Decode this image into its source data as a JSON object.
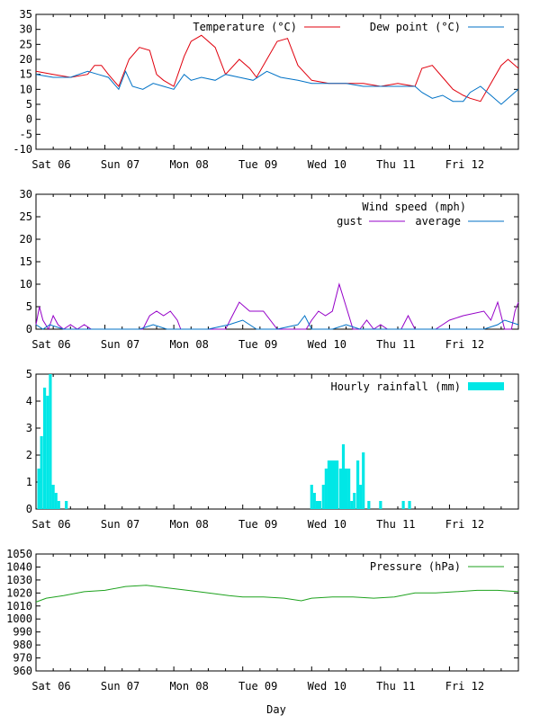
{
  "x_axis_label": "Day",
  "day_labels": [
    "Sat 06",
    "Sun 07",
    "Mon 08",
    "Tue 09",
    "Wed 10",
    "Thu 11",
    "Fri 12"
  ],
  "colors": {
    "temperature": "#e0000d",
    "dew_point": "#0072c6",
    "gust": "#9500c8",
    "average": "#0072c6",
    "rainfall": "#00e7e6",
    "pressure": "#1ea21e"
  },
  "chart_data": [
    {
      "type": "line",
      "x_unit": "days",
      "xlim": [
        0,
        7
      ],
      "ylim": [
        -10,
        35
      ],
      "yticks": [
        "-10",
        "-5",
        "0",
        "5",
        "10",
        "15",
        "20",
        "25",
        "30",
        "35"
      ],
      "grid": false,
      "legend_position": "top-right",
      "series": [
        {
          "name": "Temperature (°C)",
          "x": [
            0,
            0.25,
            0.5,
            0.75,
            0.85,
            0.95,
            1.05,
            1.2,
            1.35,
            1.5,
            1.65,
            1.75,
            1.85,
            2.0,
            2.15,
            2.25,
            2.4,
            2.6,
            2.75,
            2.95,
            3.1,
            3.2,
            3.35,
            3.5,
            3.65,
            3.8,
            4.0,
            4.25,
            4.5,
            4.75,
            5.0,
            5.25,
            5.5,
            5.6,
            5.75,
            5.9,
            6.05,
            6.2,
            6.3,
            6.45,
            6.6,
            6.75,
            6.85,
            7.0
          ],
          "y": [
            16,
            15,
            14,
            15,
            18,
            18,
            15,
            11,
            20,
            24,
            23,
            15,
            13,
            11,
            21,
            26,
            28,
            24,
            15,
            20,
            17,
            14,
            20,
            26,
            27,
            18,
            13,
            12,
            12,
            12,
            11,
            12,
            11,
            17,
            18,
            14,
            10,
            8,
            7,
            6,
            12,
            18,
            20,
            17
          ]
        },
        {
          "name": "Dew point (°C)",
          "x": [
            0,
            0.25,
            0.5,
            0.75,
            0.9,
            1.05,
            1.2,
            1.3,
            1.4,
            1.55,
            1.7,
            1.85,
            2.0,
            2.15,
            2.25,
            2.4,
            2.6,
            2.75,
            2.95,
            3.15,
            3.35,
            3.55,
            3.8,
            4.0,
            4.25,
            4.5,
            4.75,
            5.0,
            5.25,
            5.5,
            5.6,
            5.75,
            5.9,
            6.05,
            6.2,
            6.3,
            6.45,
            6.6,
            6.75,
            6.9,
            7.0
          ],
          "y": [
            15,
            14,
            14,
            16,
            15,
            14,
            10,
            16,
            11,
            10,
            12,
            11,
            10,
            15,
            13,
            14,
            13,
            15,
            14,
            13,
            16,
            14,
            13,
            12,
            12,
            12,
            11,
            11,
            11,
            11,
            9,
            7,
            8,
            6,
            6,
            9,
            11,
            8,
            5,
            8,
            10
          ]
        }
      ]
    },
    {
      "type": "line",
      "xlim": [
        0,
        7
      ],
      "ylim": [
        0,
        30
      ],
      "yticks": [
        "0",
        "5",
        "10",
        "15",
        "20",
        "25",
        "30"
      ],
      "grid": false,
      "legend_title": "Wind speed (mph)",
      "legend_position": "top-right",
      "series": [
        {
          "name": "gust",
          "x": [
            0,
            0.05,
            0.1,
            0.18,
            0.25,
            0.32,
            0.4,
            0.5,
            0.6,
            0.7,
            0.8,
            0.9,
            1.0,
            1.2,
            1.55,
            1.65,
            1.75,
            1.85,
            1.95,
            2.05,
            2.1,
            2.3,
            2.45,
            2.55,
            2.65,
            2.75,
            2.85,
            2.95,
            3.1,
            3.3,
            3.5,
            3.6,
            3.7,
            3.8,
            3.87,
            3.92,
            4.0,
            4.1,
            4.2,
            4.3,
            4.4,
            4.5,
            4.6,
            4.7,
            4.8,
            4.9,
            5.0,
            5.1,
            5.3,
            5.4,
            5.5,
            5.6,
            5.7,
            5.8,
            5.9,
            6.0,
            6.2,
            6.5,
            6.6,
            6.7,
            6.8,
            6.9,
            6.95,
            7.0
          ],
          "y": [
            1,
            5,
            2,
            0,
            3,
            1,
            0,
            1,
            0,
            1,
            0,
            0,
            0,
            0,
            0,
            3,
            4,
            3,
            4,
            2,
            0,
            0,
            0,
            0,
            0,
            0,
            3,
            6,
            4,
            4,
            0,
            0,
            0,
            0,
            0,
            0,
            2,
            4,
            3,
            4,
            10,
            5,
            0,
            0,
            2,
            0,
            1,
            0,
            0,
            3,
            0,
            0,
            0,
            0,
            1,
            2,
            3,
            4,
            2,
            6,
            0,
            0,
            4,
            6
          ]
        },
        {
          "name": "average",
          "x": [
            0,
            0.1,
            0.2,
            0.4,
            0.6,
            1.5,
            1.7,
            1.9,
            2.5,
            2.8,
            3.0,
            3.2,
            3.5,
            3.8,
            3.9,
            4.0,
            4.3,
            4.5,
            4.7,
            5.0,
            6.0,
            6.5,
            6.7,
            6.8,
            7.0
          ],
          "y": [
            1,
            0,
            1,
            0,
            0,
            0,
            1,
            0,
            0,
            1,
            2,
            0,
            0,
            1,
            3,
            0,
            0,
            1,
            0,
            0,
            0,
            0,
            1,
            2,
            1
          ]
        }
      ]
    },
    {
      "type": "bar",
      "xlim": [
        0,
        7
      ],
      "ylim": [
        0,
        5
      ],
      "yticks": [
        "0",
        "1",
        "2",
        "3",
        "4",
        "5"
      ],
      "grid": false,
      "legend_position": "top-right",
      "series": [
        {
          "name": "Hourly rainfall (mm)",
          "x": [
            0.04,
            0.08,
            0.125,
            0.167,
            0.208,
            0.25,
            0.29,
            0.33,
            0.44,
            4.0,
            4.04,
            4.08,
            4.12,
            4.17,
            4.21,
            4.25,
            4.29,
            4.33,
            4.37,
            4.42,
            4.46,
            4.5,
            4.54,
            4.58,
            4.62,
            4.67,
            4.71,
            4.75,
            4.83,
            5.0,
            5.33,
            5.42
          ],
          "values": [
            1.5,
            2.7,
            4.5,
            4.2,
            5.0,
            0.9,
            0.6,
            0.3,
            0.3,
            0.9,
            0.6,
            0.3,
            0.3,
            0.9,
            1.5,
            1.8,
            1.8,
            1.8,
            1.8,
            1.5,
            2.4,
            1.5,
            1.5,
            0.3,
            0.6,
            1.8,
            0.9,
            2.1,
            0.3,
            0.3,
            0.3,
            0.3
          ]
        }
      ]
    },
    {
      "type": "line",
      "xlim": [
        0,
        7
      ],
      "ylim": [
        960,
        1050
      ],
      "yticks": [
        "960",
        "970",
        "980",
        "990",
        "1000",
        "1010",
        "1020",
        "1030",
        "1040",
        "1050"
      ],
      "grid": false,
      "xlabel": "Day",
      "legend_position": "top-right",
      "series": [
        {
          "name": "Pressure (hPa)",
          "x": [
            0,
            0.15,
            0.4,
            0.7,
            1.0,
            1.3,
            1.6,
            1.9,
            2.2,
            2.5,
            2.8,
            3.0,
            3.3,
            3.6,
            3.85,
            4.0,
            4.3,
            4.6,
            4.9,
            5.2,
            5.5,
            5.8,
            6.1,
            6.4,
            6.7,
            7.0
          ],
          "y": [
            1013,
            1016,
            1018,
            1021,
            1022,
            1025,
            1026,
            1024,
            1022,
            1020,
            1018,
            1017,
            1017,
            1016,
            1014,
            1016,
            1017,
            1017,
            1016,
            1017,
            1020,
            1020,
            1021,
            1022,
            1022,
            1021
          ]
        }
      ]
    }
  ]
}
